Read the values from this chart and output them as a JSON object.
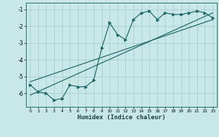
{
  "xlabel": "Humidex (Indice chaleur)",
  "bg_color": "#c8e8e8",
  "grid_color": "#a8cccc",
  "line_color": "#206868",
  "xlim": [
    -0.5,
    23.5
  ],
  "ylim": [
    -6.8,
    -0.6
  ],
  "yticks": [
    -6,
    -5,
    -4,
    -3,
    -2,
    -1
  ],
  "xticks": [
    0,
    1,
    2,
    3,
    4,
    5,
    6,
    7,
    8,
    9,
    10,
    11,
    12,
    13,
    14,
    15,
    16,
    17,
    18,
    19,
    20,
    21,
    22,
    23
  ],
  "line1_x": [
    0,
    1,
    2,
    3,
    4,
    5,
    6,
    7,
    8,
    9,
    10,
    11,
    12,
    13,
    14,
    15,
    16,
    17,
    18,
    19,
    20,
    21,
    22,
    23
  ],
  "line1_y": [
    -5.5,
    -5.9,
    -6.0,
    -6.4,
    -6.3,
    -5.5,
    -5.6,
    -5.6,
    -5.2,
    -3.3,
    -1.8,
    -2.5,
    -2.8,
    -1.6,
    -1.2,
    -1.1,
    -1.6,
    -1.2,
    -1.3,
    -1.3,
    -1.2,
    -1.1,
    -1.2,
    -1.5
  ],
  "line2_x": [
    0,
    23
  ],
  "line2_y": [
    -6.1,
    -1.2
  ],
  "line3_x": [
    0,
    23
  ],
  "line3_y": [
    -5.3,
    -1.6
  ]
}
